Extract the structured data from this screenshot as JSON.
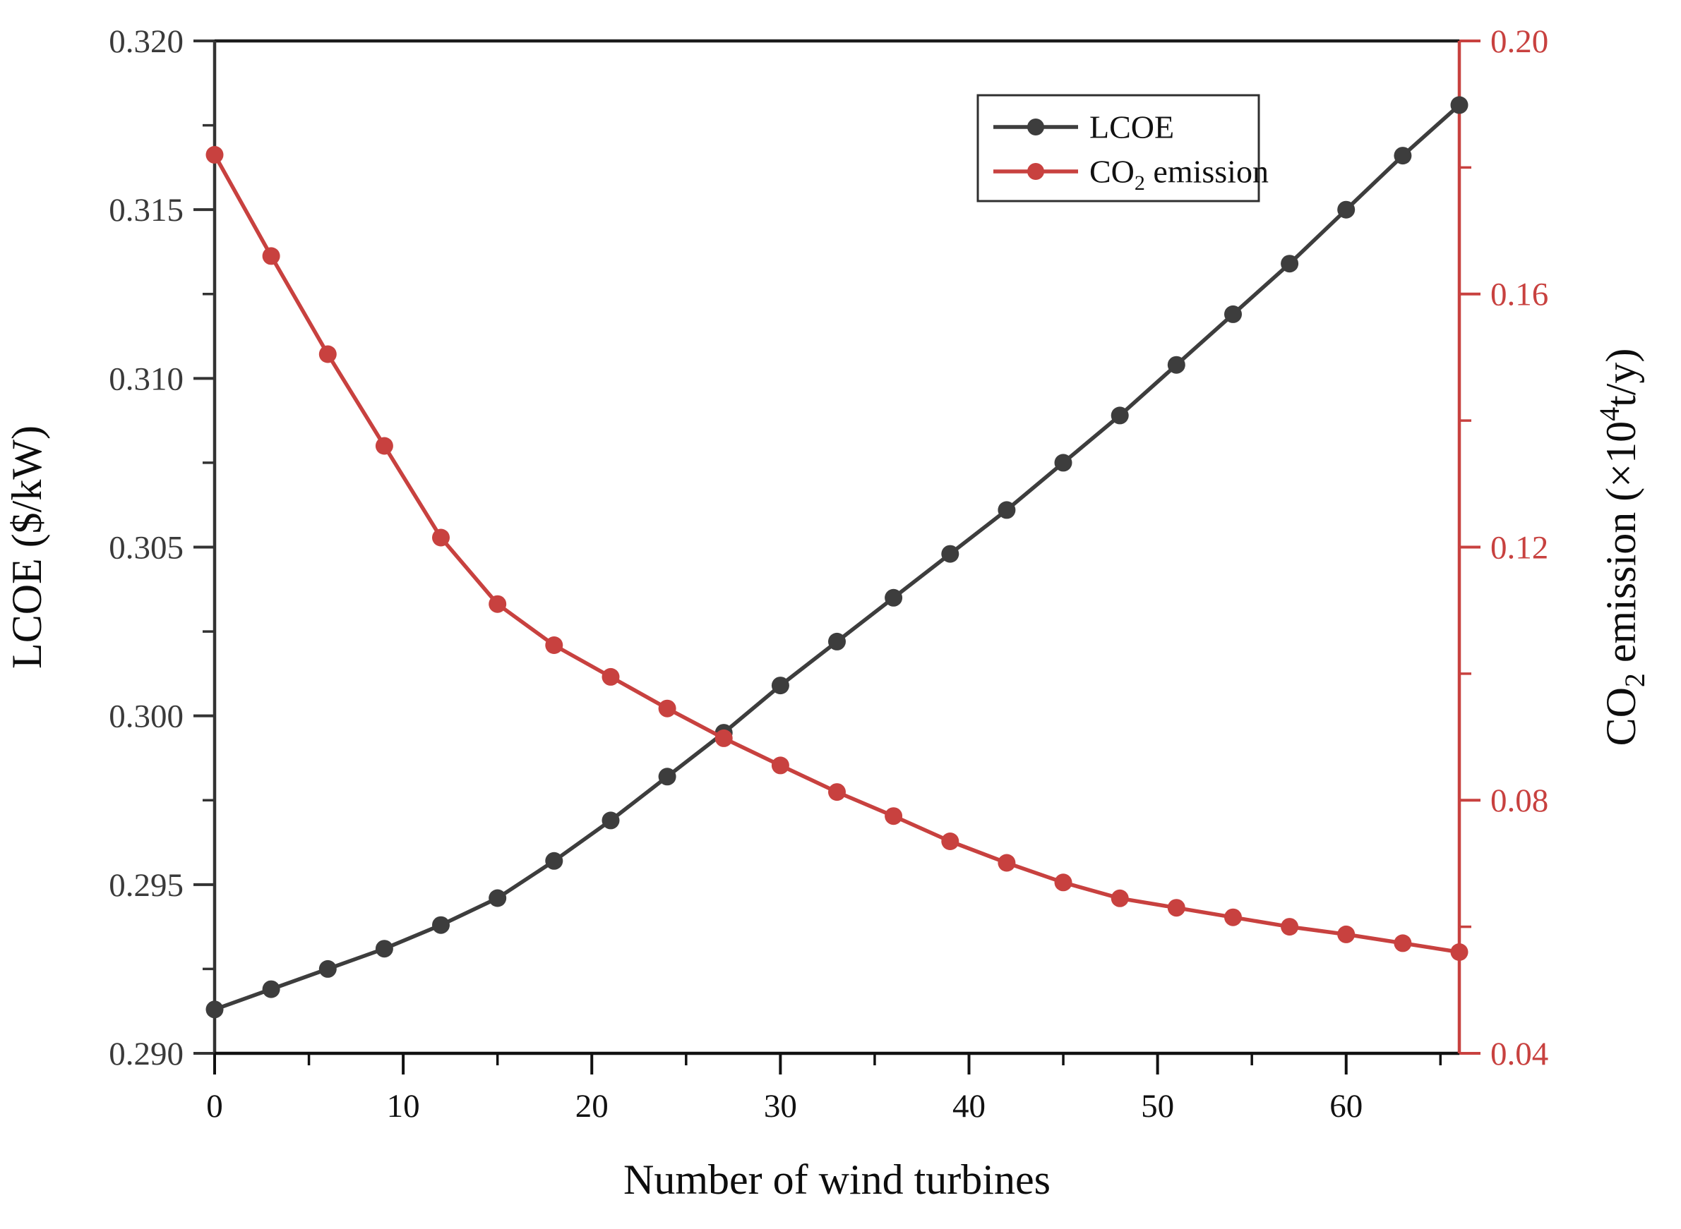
{
  "figure": {
    "x_axis": {
      "title": "Number of wind turbines",
      "tick_labels": [
        "0",
        "10",
        "20",
        "30",
        "40",
        "50",
        "60"
      ],
      "tick_values": [
        0,
        10,
        20,
        30,
        40,
        50,
        60
      ],
      "minor_tick_values": [
        5,
        15,
        25,
        35,
        45,
        55,
        65
      ],
      "range": [
        0,
        66
      ],
      "color": "#111111"
    },
    "left_axis": {
      "title": "LCOE ($/kW)",
      "tick_labels": [
        "0.320",
        "0.315",
        "0.310",
        "0.305",
        "0.300",
        "0.295",
        "0.290"
      ],
      "tick_values": [
        0.32,
        0.315,
        0.31,
        0.305,
        0.3,
        0.295,
        0.29
      ],
      "minor_tick_values": [
        0.3175,
        0.3125,
        0.3075,
        0.3025,
        0.2975,
        0.2925
      ],
      "range": [
        0.29,
        0.32
      ],
      "color": "#3a3a3a"
    },
    "right_axis": {
      "title_parts": [
        {
          "t": "CO"
        },
        {
          "t": "2",
          "style": "sub"
        },
        {
          "t": " emission (×10"
        },
        {
          "t": "4",
          "style": "sup"
        },
        {
          "t": "t/y)"
        }
      ],
      "tick_labels": [
        "0.20",
        "0.16",
        "0.12",
        "0.08",
        "0.04"
      ],
      "tick_values": [
        0.2,
        0.16,
        0.12,
        0.08,
        0.04
      ],
      "minor_tick_values": [
        0.18,
        0.14,
        0.1,
        0.06
      ],
      "range": [
        0.04,
        0.2
      ],
      "color": "#c8413f"
    },
    "legend": {
      "items": [
        {
          "name": "lcoe",
          "label_parts": [
            {
              "t": "LCOE"
            }
          ],
          "color": "#3d3d3d"
        },
        {
          "name": "co2-emission",
          "label_parts": [
            {
              "t": "CO"
            },
            {
              "t": "2",
              "style": "sub"
            },
            {
              "t": " emission"
            }
          ],
          "color": "#c8413f"
        }
      ]
    }
  },
  "chart_data": {
    "type": "line",
    "title": "",
    "xlabel": "Number of wind turbines",
    "ylabel_left": "LCOE ($/kW)",
    "ylabel_right": "CO2 emission (×10^4 t/y)",
    "xlim": [
      0,
      66
    ],
    "ylim_left": [
      0.29,
      0.32
    ],
    "ylim_right": [
      0.04,
      0.2
    ],
    "grid": false,
    "legend_position": "upper-center-inside",
    "markers": "filled-circle",
    "x": [
      0,
      3,
      6,
      9,
      12,
      15,
      18,
      21,
      24,
      27,
      30,
      33,
      36,
      39,
      42,
      45,
      48,
      51,
      54,
      57,
      60,
      63,
      66
    ],
    "series": [
      {
        "name": "LCOE",
        "axis": "left",
        "color": "#3d3d3d",
        "values": [
          0.2913,
          0.2919,
          0.2925,
          0.2931,
          0.2938,
          0.2946,
          0.2957,
          0.2969,
          0.2982,
          0.2995,
          0.3009,
          0.3022,
          0.3035,
          0.3048,
          0.3061,
          0.3075,
          0.3089,
          0.3104,
          0.3119,
          0.3134,
          0.315,
          0.3166,
          0.3181
        ]
      },
      {
        "name": "CO2 emission",
        "axis": "right",
        "color": "#c8413f",
        "values": [
          0.182,
          0.166,
          0.1505,
          0.136,
          0.1215,
          0.111,
          0.1045,
          0.0995,
          0.0945,
          0.0898,
          0.0855,
          0.0813,
          0.0775,
          0.0735,
          0.0701,
          0.067,
          0.0645,
          0.063,
          0.0615,
          0.06,
          0.0588,
          0.0574,
          0.056
        ]
      }
    ]
  }
}
